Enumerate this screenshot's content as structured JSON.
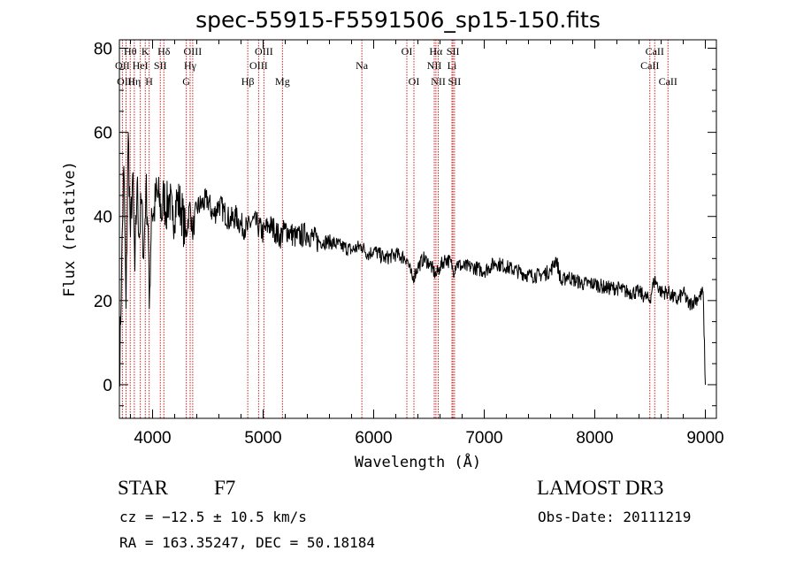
{
  "title": "spec-55915-F5591506_sp15-150.fits",
  "footer": {
    "class_label": "STAR",
    "subclass": "F7",
    "survey": "LAMOST DR3",
    "cz": "cz = −12.5 ± 10.5 km/s",
    "obs_date": "Obs-Date: 20111219",
    "radec": "RA = 163.35247, DEC =  50.18184"
  },
  "chart_data": {
    "type": "line",
    "title": "spec-55915-F5591506_sp15-150.fits",
    "xlabel": "Wavelength (Å)",
    "ylabel": "Flux (relative)",
    "xlim": [
      3700,
      9100
    ],
    "ylim": [
      -8,
      82
    ],
    "xticks": [
      4000,
      5000,
      6000,
      7000,
      8000,
      9000
    ],
    "yticks": [
      0,
      20,
      40,
      60,
      80
    ],
    "line_color": "#000000",
    "marker_color": "#cc2222",
    "spectrum": {
      "name": "flux",
      "x": [
        3700,
        3720,
        3740,
        3760,
        3780,
        3800,
        3820,
        3840,
        3860,
        3880,
        3900,
        3920,
        3940,
        3960,
        3970,
        3990,
        4010,
        4030,
        4060,
        4090,
        4101,
        4120,
        4150,
        4180,
        4220,
        4260,
        4300,
        4340,
        4360,
        4400,
        4450,
        4500,
        4550,
        4600,
        4650,
        4700,
        4750,
        4800,
        4861,
        4900,
        4950,
        5000,
        5050,
        5100,
        5150,
        5200,
        5250,
        5300,
        5400,
        5500,
        5600,
        5700,
        5800,
        5890,
        5950,
        6000,
        6100,
        6200,
        6300,
        6350,
        6400,
        6450,
        6500,
        6563,
        6600,
        6650,
        6700,
        6720,
        6750,
        6800,
        6900,
        7000,
        7100,
        7200,
        7300,
        7400,
        7500,
        7600,
        7650,
        7700,
        7750,
        7800,
        7900,
        8000,
        8100,
        8200,
        8300,
        8400,
        8450,
        8498,
        8520,
        8542,
        8560,
        8600,
        8662,
        8700,
        8750,
        8800,
        8850,
        8900,
        8950,
        8980,
        9000
      ],
      "y": [
        0,
        28,
        52,
        18,
        60,
        35,
        50,
        27,
        48,
        35,
        44,
        30,
        47,
        38,
        18,
        42,
        40,
        45,
        44,
        40,
        46,
        41,
        45,
        39,
        44,
        42,
        35,
        43,
        36,
        42,
        43,
        44,
        40,
        43,
        41,
        39,
        40,
        38,
        37,
        39,
        38,
        36,
        38,
        37,
        35,
        37,
        36,
        35,
        36,
        34,
        34,
        33,
        32,
        33,
        31,
        32,
        30,
        31,
        30,
        25,
        28,
        30,
        29,
        26,
        28,
        30,
        29,
        27,
        29,
        28,
        28,
        27,
        29,
        28,
        27,
        26,
        26,
        27,
        30,
        24,
        26,
        25,
        24,
        24,
        23,
        23,
        22,
        22,
        21,
        20,
        23,
        25,
        24,
        22,
        22,
        21,
        20,
        22,
        19,
        20,
        21,
        22,
        0
      ]
    },
    "lines": [
      {
        "name": "Hθ",
        "x": 3798,
        "row": 1
      },
      {
        "name": "OII",
        "x": 3727,
        "row": 2
      },
      {
        "name": "OIII",
        "x": 3760,
        "row": 3
      },
      {
        "name": "Hη",
        "x": 3835,
        "row": 3
      },
      {
        "name": "K",
        "x": 3934,
        "row": 1
      },
      {
        "name": "HeI",
        "x": 3889,
        "row": 2
      },
      {
        "name": "SII",
        "x": 4070,
        "row": 2
      },
      {
        "name": "H",
        "x": 3969,
        "row": 3
      },
      {
        "name": "Hδ",
        "x": 4102,
        "row": 1
      },
      {
        "name": "OIII",
        "x": 4363,
        "row": 1
      },
      {
        "name": "Hγ",
        "x": 4340,
        "row": 2
      },
      {
        "name": "G",
        "x": 4305,
        "row": 3
      },
      {
        "name": "OIII",
        "x": 5007,
        "row": 1
      },
      {
        "name": "OIII",
        "x": 4959,
        "row": 2
      },
      {
        "name": "Hβ",
        "x": 4861,
        "row": 3
      },
      {
        "name": "Mg",
        "x": 5175,
        "row": 3
      },
      {
        "name": "Na",
        "x": 5893,
        "row": 2
      },
      {
        "name": "OI",
        "x": 6300,
        "row": 1
      },
      {
        "name": "OI",
        "x": 6364,
        "row": 3
      },
      {
        "name": "Hα",
        "x": 6563,
        "row": 1
      },
      {
        "name": "NII",
        "x": 6548,
        "row": 2
      },
      {
        "name": "NII",
        "x": 6584,
        "row": 3
      },
      {
        "name": "SII",
        "x": 6717,
        "row": 1
      },
      {
        "name": "Li",
        "x": 6708,
        "row": 2
      },
      {
        "name": "SII",
        "x": 6731,
        "row": 3
      },
      {
        "name": "CaII",
        "x": 8542,
        "row": 1
      },
      {
        "name": "CaII",
        "x": 8498,
        "row": 2
      },
      {
        "name": "CaII",
        "x": 8662,
        "row": 3
      }
    ]
  }
}
